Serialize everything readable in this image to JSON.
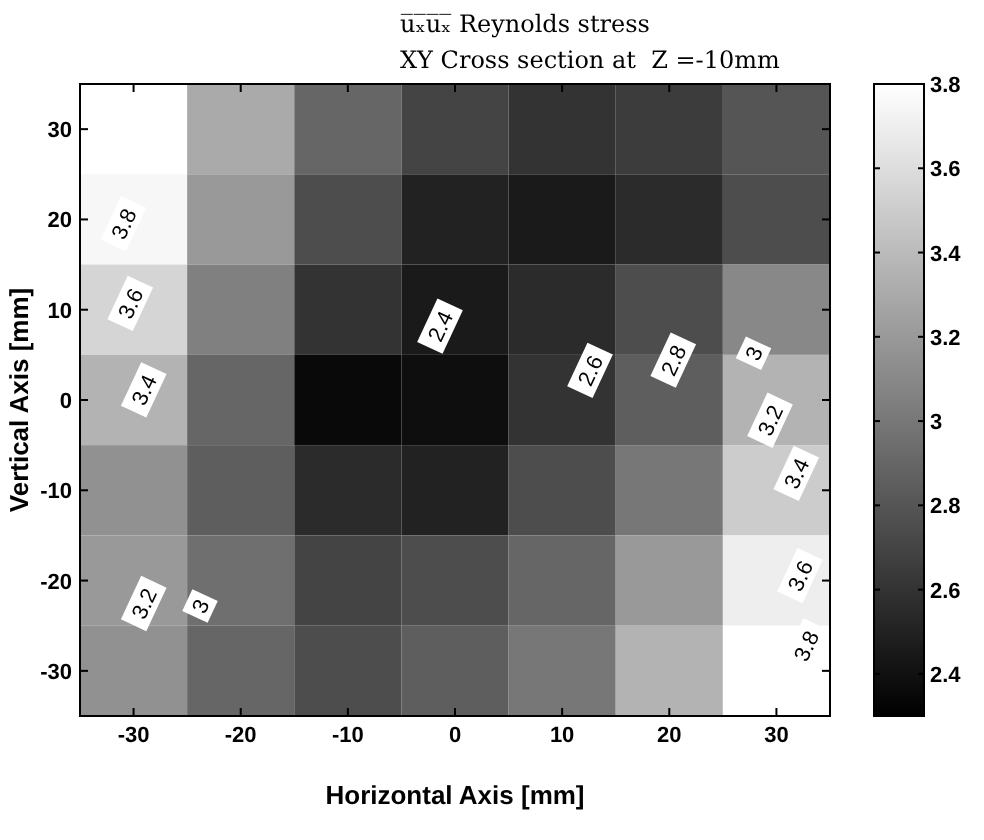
{
  "chart_data": {
    "type": "heatmap",
    "title": "u̅ₓ̅u̅ₓ̅ Reynolds stress",
    "subtitle": "XY Cross section at  Z =-10mm",
    "xlabel": "Horizontal Axis [mm]",
    "ylabel": "Vertical Axis [mm]",
    "categories": [
      "-30",
      "-20",
      "-10",
      "0",
      "10",
      "20",
      "30"
    ],
    "y_categories": [
      "30",
      "20",
      "10",
      "0",
      "-10",
      "-20",
      "-30"
    ],
    "cells": [
      [
        3.8,
        3.3,
        2.9,
        2.7,
        2.6,
        2.65,
        2.8
      ],
      [
        3.75,
        3.2,
        2.75,
        2.5,
        2.45,
        2.55,
        2.75
      ],
      [
        3.55,
        3.05,
        2.6,
        2.45,
        2.55,
        2.75,
        3.1
      ],
      [
        3.35,
        2.9,
        2.35,
        2.38,
        2.6,
        2.85,
        3.35
      ],
      [
        3.15,
        2.85,
        2.55,
        2.5,
        2.75,
        3.0,
        3.5
      ],
      [
        3.2,
        2.95,
        2.7,
        2.75,
        2.9,
        3.2,
        3.7
      ],
      [
        3.15,
        2.9,
        2.75,
        2.85,
        3.0,
        3.35,
        3.8
      ]
    ],
    "clim": [
      2.3,
      3.8
    ],
    "cticks": [
      2.4,
      2.6,
      2.8,
      3,
      3.2,
      3.4,
      3.6,
      3.8
    ],
    "annotations": [
      "3.8",
      "3.6",
      "3.4",
      "3.2",
      "3",
      "2.4",
      "2.6",
      "2.8",
      "3",
      "3.2",
      "3.4",
      "3.6",
      "3.8"
    ]
  }
}
